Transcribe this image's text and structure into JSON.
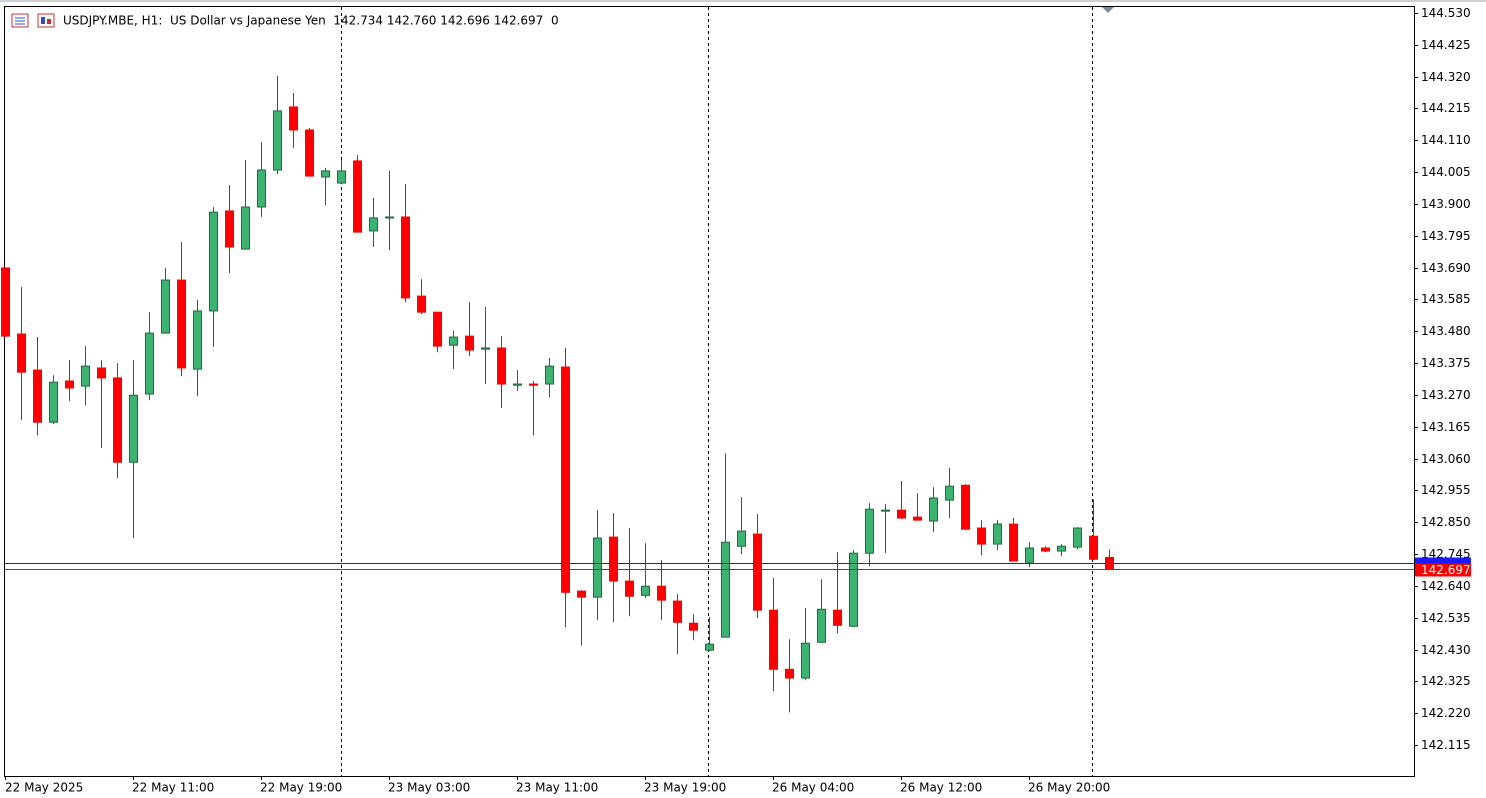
{
  "chart_data": {
    "type": "candlestick",
    "title": "USDJPY.MBE, H1:  US Dollar vs Japanese Yen  142.734 142.760 142.696 142.697  0",
    "categories": [
      "22 May 2025",
      null,
      null,
      null,
      null,
      null,
      null,
      null,
      "22 May 11:00",
      null,
      null,
      null,
      null,
      null,
      null,
      null,
      "22 May 19:00",
      null,
      null,
      null,
      null,
      null,
      null,
      null,
      "23 May 03:00",
      null,
      null,
      null,
      null,
      null,
      null,
      null,
      "23 May 11:00",
      null,
      null,
      null,
      null,
      null,
      null,
      null,
      "23 May 19:00",
      null,
      null,
      null,
      null,
      null,
      null,
      null,
      "26 May 04:00",
      null,
      null,
      null,
      null,
      null,
      null,
      null,
      "26 May 12:00",
      null,
      null,
      null,
      null,
      null,
      null,
      null,
      "26 May 20:00",
      null,
      null,
      null,
      null,
      null
    ],
    "open": [
      143.689,
      143.471,
      143.352,
      143.18,
      143.316,
      143.299,
      143.359,
      143.326,
      143.048,
      143.273,
      143.474,
      143.649,
      143.355,
      143.547,
      143.877,
      143.751,
      143.89,
      144.012,
      144.22,
      144.144,
      143.989,
      143.969,
      144.042,
      143.811,
      143.854,
      143.857,
      143.596,
      143.543,
      143.434,
      143.464,
      143.421,
      143.425,
      143.302,
      143.306,
      143.306,
      143.362,
      142.623,
      142.603,
      142.801,
      142.656,
      142.609,
      142.639,
      142.59,
      142.517,
      142.428,
      142.471,
      142.771,
      142.811,
      142.56,
      142.365,
      142.336,
      142.454,
      142.56,
      142.507,
      142.748,
      142.887,
      142.89,
      142.867,
      142.854,
      142.923,
      142.972,
      142.831,
      142.778,
      142.844,
      142.718,
      142.765,
      142.755,
      142.768,
      142.804,
      142.734
    ],
    "high": [
      143.689,
      143.626,
      143.461,
      143.335,
      143.385,
      143.431,
      143.385,
      143.375,
      143.385,
      143.543,
      143.689,
      143.774,
      143.583,
      143.89,
      143.962,
      144.045,
      144.104,
      144.322,
      144.266,
      144.151,
      144.019,
      144.045,
      144.061,
      143.92,
      144.009,
      143.966,
      143.652,
      143.543,
      143.481,
      143.576,
      143.56,
      143.464,
      143.352,
      143.316,
      143.392,
      143.425,
      142.626,
      142.89,
      142.88,
      142.831,
      142.781,
      142.725,
      142.613,
      142.547,
      142.537,
      143.078,
      142.933,
      142.877,
      142.666,
      142.464,
      142.567,
      142.662,
      142.751,
      142.758,
      142.913,
      142.91,
      142.986,
      142.946,
      142.966,
      143.029,
      142.976,
      142.857,
      142.857,
      142.864,
      142.784,
      142.771,
      142.778,
      142.834,
      142.926,
      142.76
    ],
    "low": [
      143.464,
      143.187,
      143.137,
      143.174,
      143.25,
      143.236,
      143.095,
      142.996,
      142.798,
      143.253,
      143.474,
      143.332,
      143.266,
      143.428,
      143.672,
      143.751,
      143.857,
      143.999,
      144.085,
      143.992,
      143.896,
      143.969,
      143.807,
      143.758,
      143.748,
      143.576,
      143.537,
      143.411,
      143.355,
      143.398,
      143.306,
      143.227,
      143.283,
      143.137,
      143.263,
      142.504,
      142.444,
      142.527,
      142.52,
      142.54,
      142.6,
      142.527,
      142.415,
      142.461,
      142.425,
      142.471,
      142.745,
      142.534,
      142.293,
      142.223,
      142.329,
      142.454,
      142.484,
      142.504,
      142.705,
      142.748,
      142.86,
      142.857,
      142.817,
      142.864,
      142.824,
      142.741,
      142.758,
      142.722,
      142.702,
      142.751,
      142.738,
      142.761,
      142.725,
      142.696
    ],
    "close": [
      143.464,
      143.345,
      143.18,
      143.312,
      143.293,
      143.365,
      143.326,
      143.048,
      143.269,
      143.474,
      143.649,
      143.359,
      143.547,
      143.873,
      143.758,
      143.89,
      144.012,
      144.207,
      144.144,
      143.992,
      144.009,
      144.009,
      143.807,
      143.854,
      143.857,
      143.59,
      143.543,
      143.431,
      143.461,
      143.418,
      143.425,
      143.306,
      143.306,
      143.302,
      143.365,
      142.619,
      142.603,
      142.798,
      142.656,
      142.606,
      142.639,
      142.593,
      142.52,
      142.494,
      142.448,
      142.784,
      142.821,
      142.56,
      142.365,
      142.336,
      142.451,
      142.563,
      142.51,
      142.748,
      142.893,
      142.89,
      142.864,
      142.857,
      142.93,
      142.969,
      142.827,
      142.778,
      142.844,
      142.722,
      142.765,
      142.755,
      142.771,
      142.831,
      142.728,
      142.697
    ],
    "up_color": "#3cb371",
    "down_color": "#ff0000",
    "bid": 142.697,
    "bid_color": "#ff0000",
    "ask": 142.716,
    "ask_color": "#1a1aff",
    "ylim": [
      142.013,
      144.553
    ],
    "yticks": [
      {
        "value": 144.53,
        "label": "144.530"
      },
      144.425,
      {
        "value": 144.32,
        "label": "144.320"
      },
      144.215,
      {
        "value": 144.11,
        "label": "144.110"
      },
      144.005,
      {
        "value": 143.9,
        "label": "143.900"
      },
      143.795,
      {
        "value": 143.69,
        "label": "143.690"
      },
      143.585,
      {
        "value": 143.48,
        "label": "143.480"
      },
      143.375,
      {
        "value": 143.27,
        "label": "143.270"
      },
      143.165,
      {
        "value": 143.06,
        "label": "143.060"
      },
      142.955,
      {
        "value": 142.85,
        "label": "142.850"
      },
      142.745,
      {
        "value": 142.64,
        "label": "142.640"
      },
      142.535,
      {
        "value": 142.43,
        "label": "142.430"
      },
      142.325,
      {
        "value": 142.22,
        "label": "142.220"
      },
      142.115
    ]
  }
}
